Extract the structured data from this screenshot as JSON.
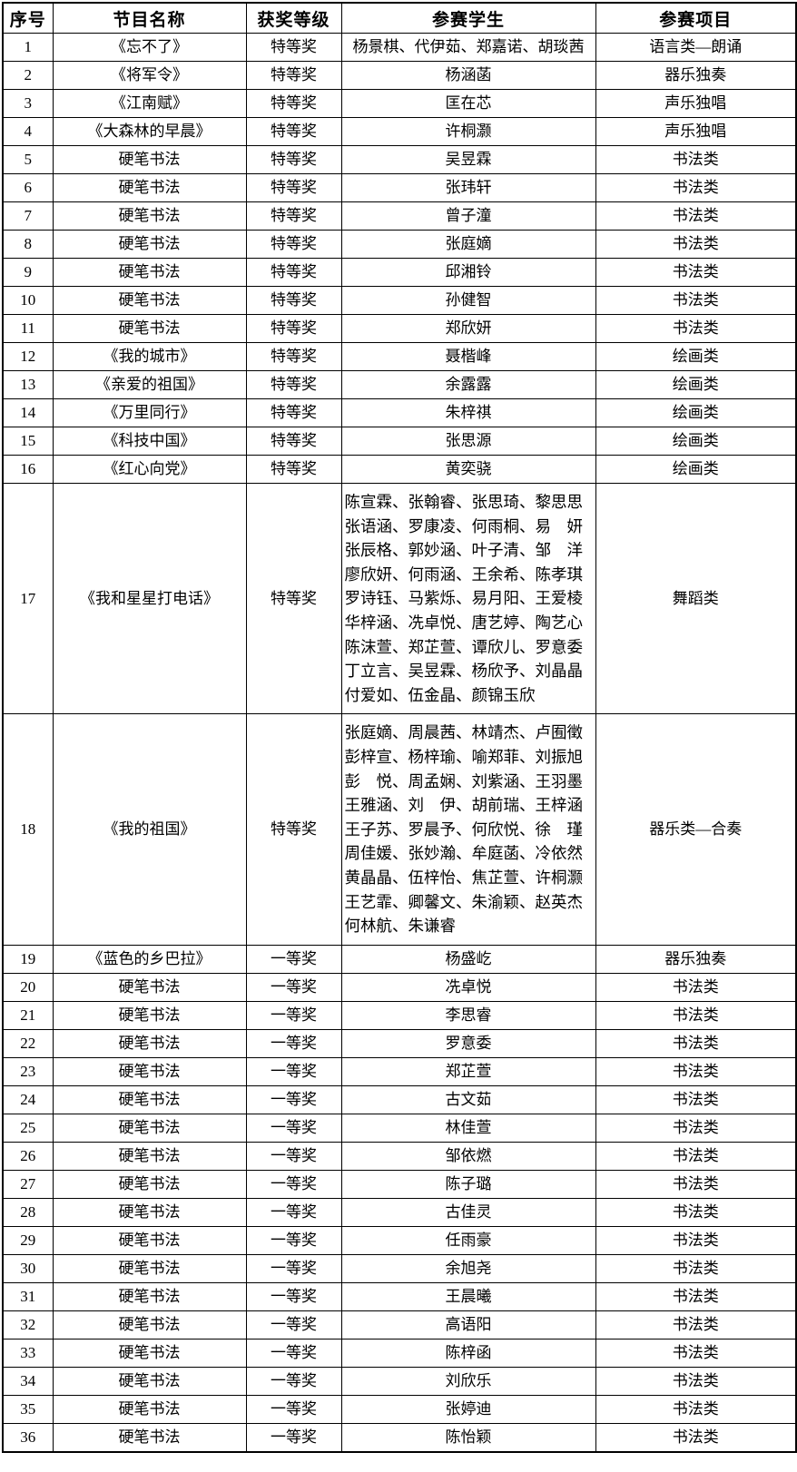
{
  "table": {
    "headers": [
      "序号",
      "节目名称",
      "获奖等级",
      "参赛学生",
      "参赛项目"
    ],
    "rows": [
      {
        "no": "1",
        "program": "《忘不了》",
        "award": "特等奖",
        "students": "杨景棋、代伊茹、郑嘉诺、胡琰茜",
        "category": "语言类—朗诵"
      },
      {
        "no": "2",
        "program": "《将军令》",
        "award": "特等奖",
        "students": "杨涵菡",
        "category": "器乐独奏"
      },
      {
        "no": "3",
        "program": "《江南赋》",
        "award": "特等奖",
        "students": "匡在芯",
        "category": "声乐独唱"
      },
      {
        "no": "4",
        "program": "《大森林的早晨》",
        "award": "特等奖",
        "students": "许桐灏",
        "category": "声乐独唱"
      },
      {
        "no": "5",
        "program": "硬笔书法",
        "award": "特等奖",
        "students": "吴昱霖",
        "category": "书法类"
      },
      {
        "no": "6",
        "program": "硬笔书法",
        "award": "特等奖",
        "students": "张玮轩",
        "category": "书法类"
      },
      {
        "no": "7",
        "program": "硬笔书法",
        "award": "特等奖",
        "students": "曾子潼",
        "category": "书法类"
      },
      {
        "no": "8",
        "program": "硬笔书法",
        "award": "特等奖",
        "students": "张庭嫡",
        "category": "书法类"
      },
      {
        "no": "9",
        "program": "硬笔书法",
        "award": "特等奖",
        "students": "邱湘铃",
        "category": "书法类"
      },
      {
        "no": "10",
        "program": "硬笔书法",
        "award": "特等奖",
        "students": "孙健智",
        "category": "书法类"
      },
      {
        "no": "11",
        "program": "硬笔书法",
        "award": "特等奖",
        "students": "郑欣妍",
        "category": "书法类"
      },
      {
        "no": "12",
        "program": "《我的城市》",
        "award": "特等奖",
        "students": "聂楷峰",
        "category": "绘画类"
      },
      {
        "no": "13",
        "program": "《亲爱的祖国》",
        "award": "特等奖",
        "students": "余露露",
        "category": "绘画类"
      },
      {
        "no": "14",
        "program": "《万里同行》",
        "award": "特等奖",
        "students": "朱梓祺",
        "category": "绘画类"
      },
      {
        "no": "15",
        "program": "《科技中国》",
        "award": "特等奖",
        "students": "张思源",
        "category": "绘画类"
      },
      {
        "no": "16",
        "program": "《红心向党》",
        "award": "特等奖",
        "students": "黄奕骁",
        "category": "绘画类"
      },
      {
        "no": "17",
        "program": "《我和星星打电话》",
        "award": "特等奖",
        "students": "陈宣霖、张翰睿、张思琦、黎思思\n张语涵、罗康凌、何雨桐、易　妍\n张辰格、郭妙涵、叶子清、邹　洋\n廖欣妍、何雨涵、王余希、陈孝琪\n罗诗钰、马紫烁、易月阳、王爱棱\n华梓涵、冼卓悦、唐艺婷、陶艺心\n陈沫萱、郑芷萱、谭欣儿、罗意委\n丁立言、吴昱霖、杨欣予、刘晶晶\n付爱如、伍金晶、颜锦玉欣",
        "category": "舞蹈类"
      },
      {
        "no": "18",
        "program": "《我的祖国》",
        "award": "特等奖",
        "students": "张庭嫡、周晨茜、林靖杰、卢囿徵\n彭梓宣、杨梓瑜、喻郑菲、刘振旭\n彭　悦、周孟娴、刘紫涵、王羽墨\n王雅涵、刘　伊、胡前瑞、王梓涵\n王子苏、罗晨予、何欣悦、徐　瑾\n周佳媛、张妙瀚、牟庭菡、冷依然\n黄晶晶、伍梓怡、焦芷萱、许桐灏\n王艺霏、卿馨文、朱渝颖、赵英杰\n何林航、朱谦睿",
        "category": "器乐类—合奏"
      },
      {
        "no": "19",
        "program": "《蓝色的乡巴拉》",
        "award": "一等奖",
        "students": "杨盛屹",
        "category": "器乐独奏"
      },
      {
        "no": "20",
        "program": "硬笔书法",
        "award": "一等奖",
        "students": "冼卓悦",
        "category": "书法类"
      },
      {
        "no": "21",
        "program": "硬笔书法",
        "award": "一等奖",
        "students": "李思睿",
        "category": "书法类"
      },
      {
        "no": "22",
        "program": "硬笔书法",
        "award": "一等奖",
        "students": "罗意委",
        "category": "书法类"
      },
      {
        "no": "23",
        "program": "硬笔书法",
        "award": "一等奖",
        "students": "郑芷萱",
        "category": "书法类"
      },
      {
        "no": "24",
        "program": "硬笔书法",
        "award": "一等奖",
        "students": "古文茹",
        "category": "书法类"
      },
      {
        "no": "25",
        "program": "硬笔书法",
        "award": "一等奖",
        "students": "林佳萱",
        "category": "书法类"
      },
      {
        "no": "26",
        "program": "硬笔书法",
        "award": "一等奖",
        "students": "邹依燃",
        "category": "书法类"
      },
      {
        "no": "27",
        "program": "硬笔书法",
        "award": "一等奖",
        "students": "陈子璐",
        "category": "书法类"
      },
      {
        "no": "28",
        "program": "硬笔书法",
        "award": "一等奖",
        "students": "古佳灵",
        "category": "书法类"
      },
      {
        "no": "29",
        "program": "硬笔书法",
        "award": "一等奖",
        "students": "任雨豪",
        "category": "书法类"
      },
      {
        "no": "30",
        "program": "硬笔书法",
        "award": "一等奖",
        "students": "余旭尧",
        "category": "书法类"
      },
      {
        "no": "31",
        "program": "硬笔书法",
        "award": "一等奖",
        "students": "王晨曦",
        "category": "书法类"
      },
      {
        "no": "32",
        "program": "硬笔书法",
        "award": "一等奖",
        "students": "高语阳",
        "category": "书法类"
      },
      {
        "no": "33",
        "program": "硬笔书法",
        "award": "一等奖",
        "students": "陈梓函",
        "category": "书法类"
      },
      {
        "no": "34",
        "program": "硬笔书法",
        "award": "一等奖",
        "students": "刘欣乐",
        "category": "书法类"
      },
      {
        "no": "35",
        "program": "硬笔书法",
        "award": "一等奖",
        "students": "张婷迪",
        "category": "书法类"
      },
      {
        "no": "36",
        "program": "硬笔书法",
        "award": "一等奖",
        "students": "陈怡颖",
        "category": "书法类"
      }
    ]
  }
}
